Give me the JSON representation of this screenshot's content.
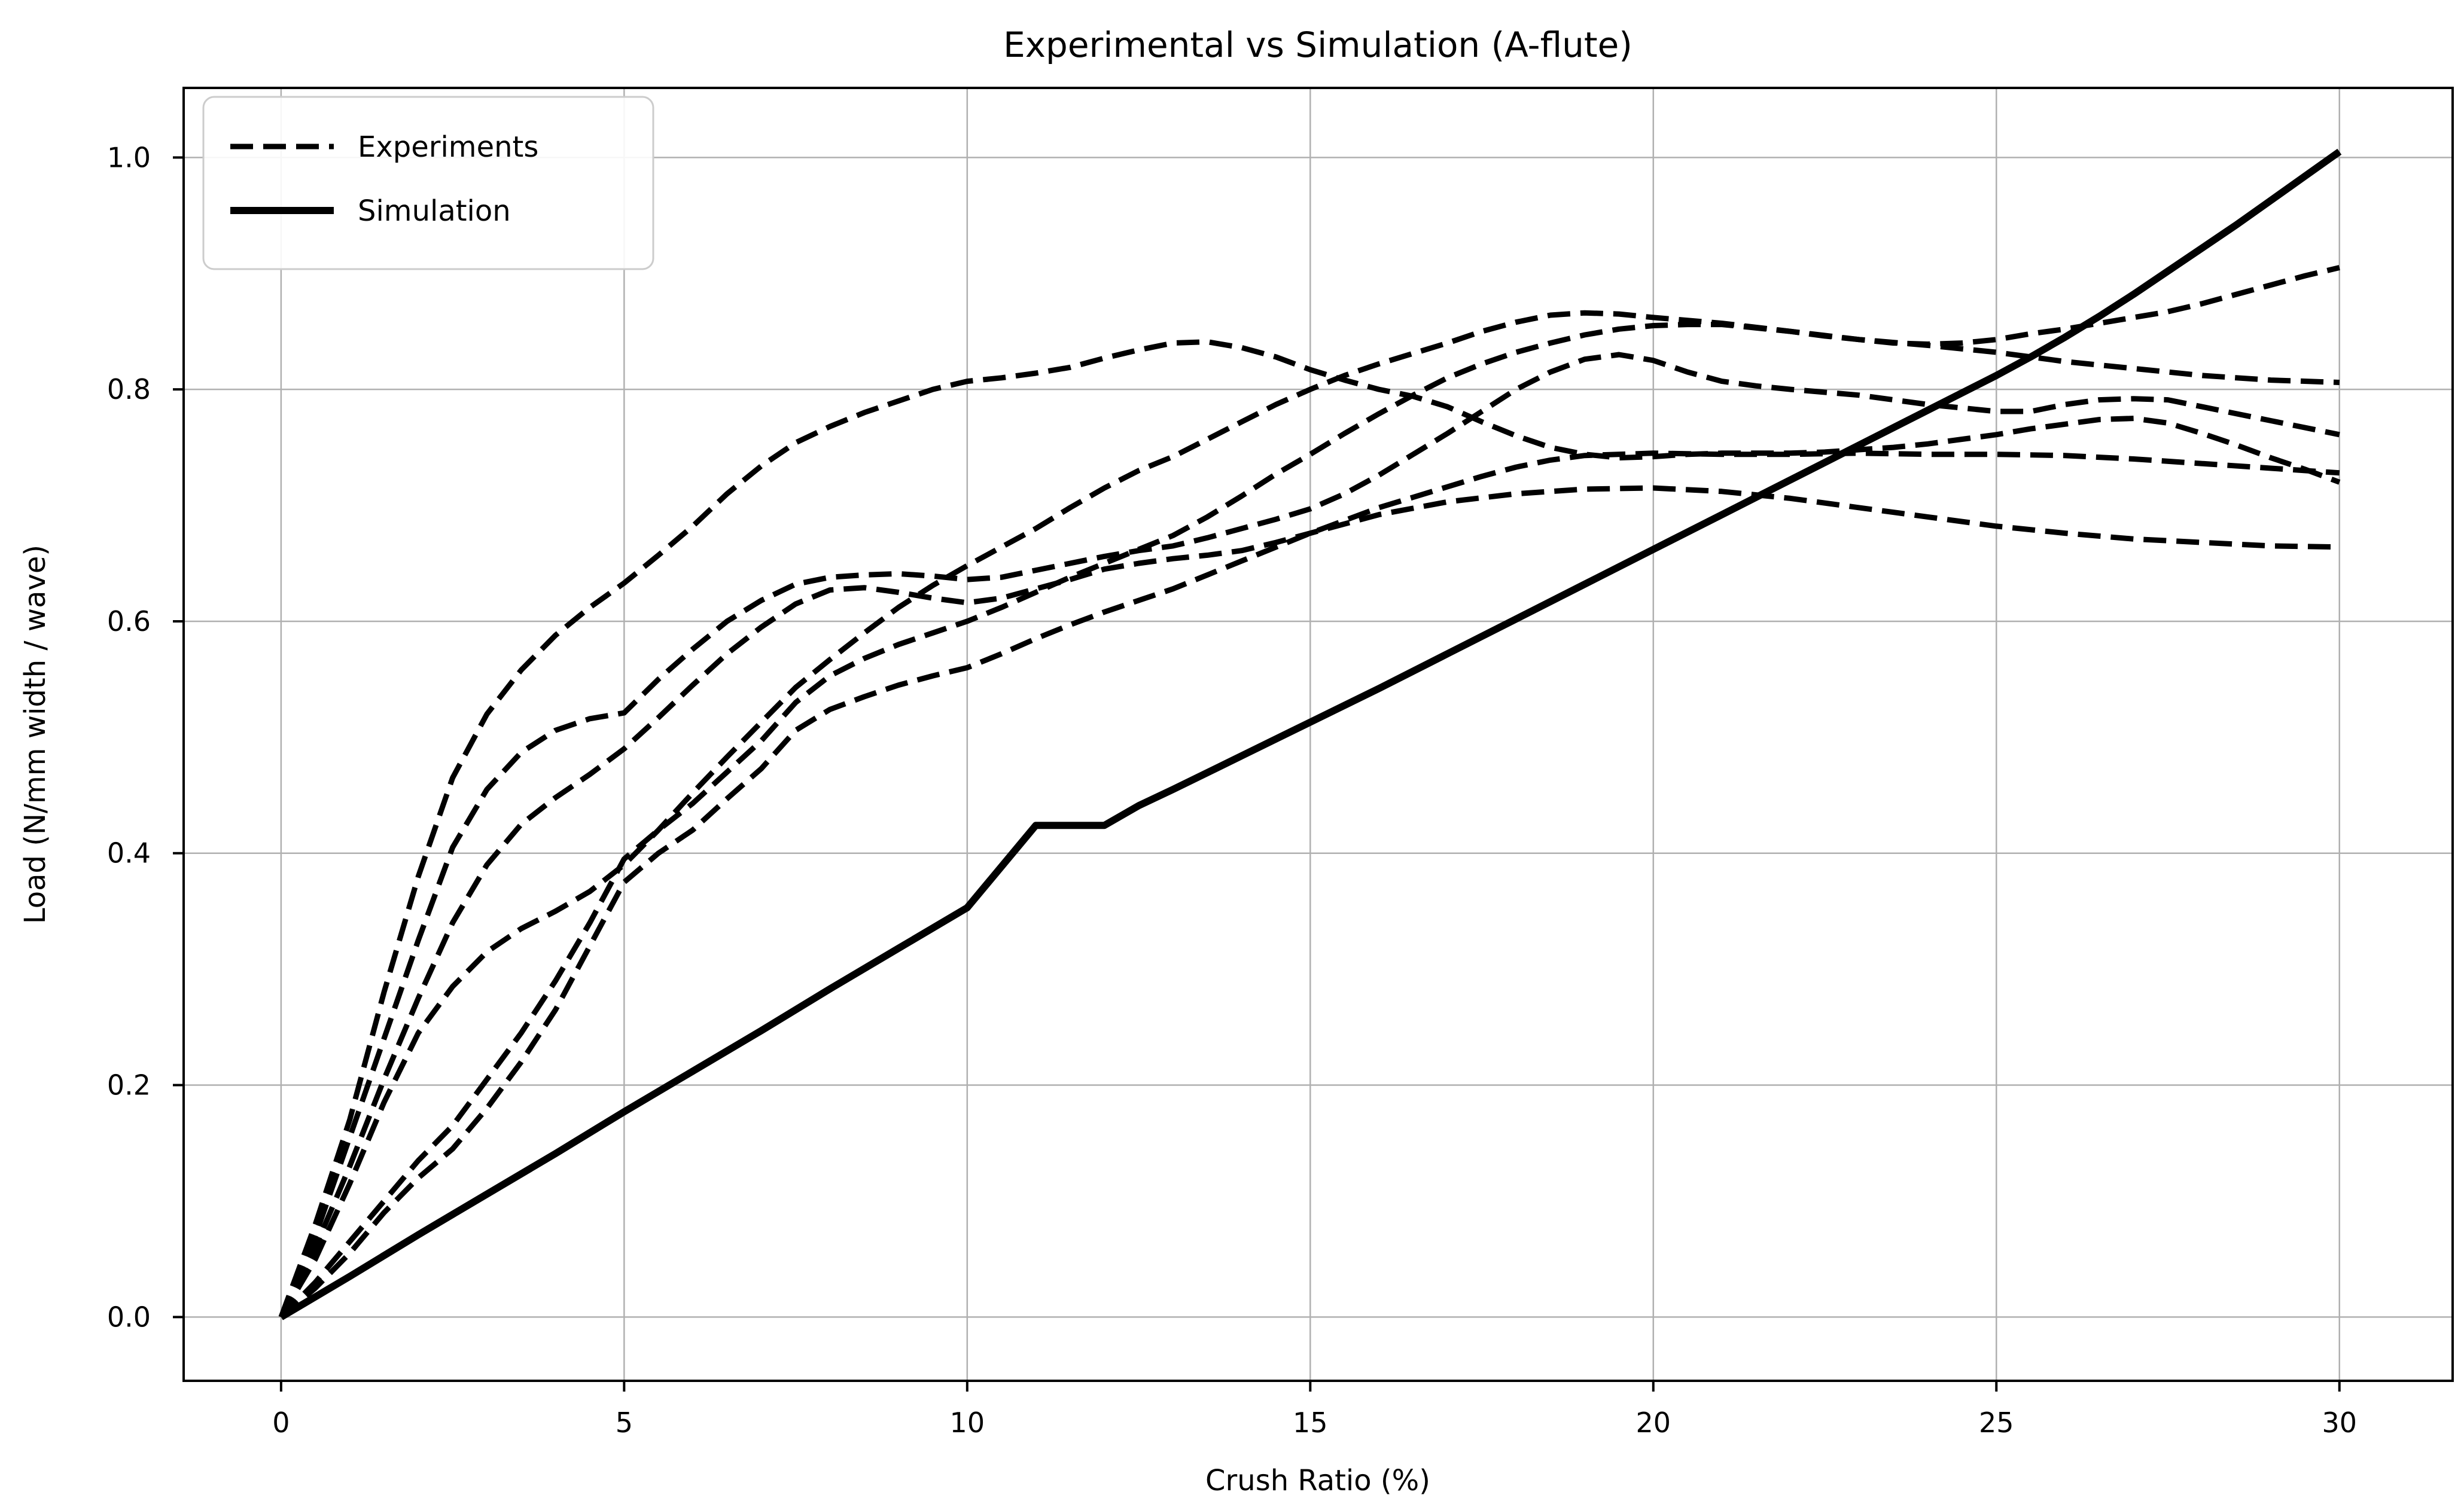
{
  "title": "Experimental vs Simulation (A-flute)",
  "colors": {
    "line": "#000000",
    "grid": "#b0b0b0",
    "spine": "#000000",
    "legend_border": "#cccccc",
    "background": "#ffffff"
  },
  "chart_data": {
    "type": "line",
    "title": "Experimental vs Simulation (A-flute)",
    "xlabel": "Crush Ratio (%)",
    "ylabel": "Load (N/mm width / wave)",
    "xlim": [
      -1.42,
      31.65
    ],
    "ylim": [
      -0.055,
      1.06
    ],
    "x_ticks": [
      0,
      5,
      10,
      15,
      20,
      25,
      30
    ],
    "x_tick_labels": [
      "0",
      "5",
      "10",
      "15",
      "20",
      "25",
      "30"
    ],
    "y_ticks": [
      0.0,
      0.2,
      0.4,
      0.6,
      0.8,
      1.0
    ],
    "y_tick_labels": [
      "0.0",
      "0.2",
      "0.4",
      "0.6",
      "0.8",
      "1.0"
    ],
    "grid": true,
    "legend": {
      "position": "upper left",
      "entries": [
        {
          "label": "Experiments",
          "style": "dashed"
        },
        {
          "label": "Simulation",
          "style": "solid"
        }
      ]
    },
    "series": [
      {
        "name": "experiment-1",
        "group": "Experiments",
        "style": "dashed",
        "x": [
          0,
          0.5,
          1,
          1.5,
          2,
          2.5,
          3,
          3.5,
          4,
          4.5,
          5,
          5.5,
          6,
          6.5,
          7,
          7.5,
          8,
          8.5,
          9,
          9.5,
          10,
          10.5,
          11,
          11.5,
          12,
          12.5,
          13,
          13.5,
          14,
          14.5,
          15,
          15.5,
          16,
          16.5,
          17,
          17.5,
          18,
          18.5,
          19,
          19.5,
          20,
          20.5,
          21,
          21.5,
          22,
          22.5,
          23,
          23.5,
          24,
          24.5,
          25,
          25.5,
          26,
          26.5,
          27,
          27.5,
          28,
          28.5,
          29,
          29.5,
          30
        ],
        "y": [
          0,
          0.08,
          0.17,
          0.28,
          0.38,
          0.465,
          0.52,
          0.558,
          0.588,
          0.612,
          0.633,
          0.657,
          0.682,
          0.71,
          0.734,
          0.754,
          0.768,
          0.78,
          0.79,
          0.8,
          0.807,
          0.81,
          0.814,
          0.819,
          0.827,
          0.834,
          0.84,
          0.841,
          0.836,
          0.828,
          0.817,
          0.808,
          0.8,
          0.794,
          0.785,
          0.772,
          0.76,
          0.75,
          0.744,
          0.741,
          0.742,
          0.744,
          0.745,
          0.745,
          0.745,
          0.746,
          0.748,
          0.75,
          0.753,
          0.757,
          0.761,
          0.766,
          0.77,
          0.774,
          0.775,
          0.771,
          0.762,
          0.752,
          0.741,
          0.731,
          0.72
        ]
      },
      {
        "name": "experiment-2",
        "group": "Experiments",
        "style": "dashed",
        "x": [
          0,
          0.5,
          1,
          1.5,
          2,
          2.5,
          3,
          3.5,
          4,
          4.5,
          5,
          5.5,
          6,
          6.5,
          7,
          7.5,
          8,
          8.5,
          9,
          9.5,
          10,
          10.5,
          11,
          11.5,
          12,
          12.5,
          13,
          13.5,
          14,
          14.5,
          15,
          15.5,
          16,
          16.5,
          17,
          17.5,
          18,
          18.5,
          19,
          19.5,
          20,
          21,
          22,
          23,
          24,
          25,
          26,
          27,
          28,
          29,
          30
        ],
        "y": [
          0,
          0.05,
          0.115,
          0.185,
          0.245,
          0.285,
          0.315,
          0.335,
          0.35,
          0.367,
          0.39,
          0.42,
          0.452,
          0.483,
          0.513,
          0.543,
          0.567,
          0.59,
          0.612,
          0.631,
          0.648,
          0.664,
          0.68,
          0.698,
          0.715,
          0.73,
          0.742,
          0.757,
          0.772,
          0.787,
          0.8,
          0.812,
          0.822,
          0.831,
          0.84,
          0.85,
          0.858,
          0.864,
          0.866,
          0.865,
          0.862,
          0.857,
          0.85,
          0.843,
          0.838,
          0.832,
          0.824,
          0.818,
          0.812,
          0.808,
          0.806
        ]
      },
      {
        "name": "experiment-3",
        "group": "Experiments",
        "style": "dashed",
        "x": [
          0,
          0.5,
          1,
          1.5,
          2,
          2.5,
          3,
          3.5,
          4,
          4.5,
          5,
          5.5,
          6,
          6.5,
          7,
          7.5,
          8,
          8.5,
          9,
          9.5,
          10,
          10.5,
          11,
          11.5,
          12,
          12.5,
          13,
          13.5,
          14,
          14.5,
          15,
          15.5,
          16,
          16.5,
          17,
          17.5,
          18,
          18.5,
          19,
          19.5,
          20,
          20.5,
          21,
          21.5,
          22,
          23,
          24,
          25,
          25.5,
          26,
          26.5,
          27,
          27.5,
          28,
          29,
          30
        ],
        "y": [
          0,
          0.07,
          0.155,
          0.24,
          0.325,
          0.405,
          0.455,
          0.487,
          0.506,
          0.516,
          0.521,
          0.55,
          0.576,
          0.6,
          0.618,
          0.632,
          0.638,
          0.64,
          0.641,
          0.639,
          0.636,
          0.638,
          0.644,
          0.65,
          0.656,
          0.661,
          0.665,
          0.672,
          0.68,
          0.688,
          0.697,
          0.71,
          0.726,
          0.744,
          0.762,
          0.781,
          0.8,
          0.815,
          0.826,
          0.83,
          0.825,
          0.815,
          0.807,
          0.803,
          0.8,
          0.795,
          0.787,
          0.781,
          0.781,
          0.787,
          0.791,
          0.792,
          0.791,
          0.785,
          0.773,
          0.761
        ]
      },
      {
        "name": "experiment-4",
        "group": "Experiments",
        "style": "dashed",
        "x": [
          0,
          0.5,
          1,
          1.5,
          2,
          2.5,
          3,
          3.5,
          4,
          4.5,
          5,
          5.5,
          6,
          6.5,
          7,
          7.5,
          8,
          8.5,
          9,
          9.5,
          10,
          10.5,
          11,
          11.5,
          12,
          12.5,
          13,
          13.5,
          14,
          14.5,
          15,
          16,
          17,
          18,
          19,
          20,
          21,
          22,
          23,
          24,
          25,
          26,
          27,
          28,
          29,
          30
        ],
        "y": [
          0,
          0.06,
          0.13,
          0.205,
          0.275,
          0.34,
          0.39,
          0.425,
          0.448,
          0.468,
          0.49,
          0.517,
          0.545,
          0.572,
          0.595,
          0.615,
          0.627,
          0.629,
          0.625,
          0.62,
          0.616,
          0.62,
          0.628,
          0.636,
          0.645,
          0.65,
          0.654,
          0.657,
          0.661,
          0.668,
          0.676,
          0.692,
          0.703,
          0.71,
          0.714,
          0.715,
          0.712,
          0.706,
          0.698,
          0.69,
          0.682,
          0.676,
          0.671,
          0.668,
          0.665,
          0.664
        ]
      },
      {
        "name": "experiment-5",
        "group": "Experiments",
        "style": "dashed",
        "x": [
          0,
          0.5,
          1,
          1.5,
          2,
          2.5,
          3,
          3.5,
          4,
          4.5,
          5,
          5.5,
          6,
          6.5,
          7,
          7.5,
          8,
          8.5,
          9,
          9.5,
          10,
          10.5,
          11,
          11.5,
          12,
          12.5,
          13,
          13.5,
          14,
          14.5,
          15,
          15.5,
          16,
          16.5,
          17,
          17.5,
          18,
          18.5,
          19,
          19.5,
          20,
          20.5,
          21,
          21.5,
          22,
          22.5,
          23,
          23.5,
          24,
          24.5,
          25,
          25.5,
          26,
          26.5,
          27,
          27.5,
          28,
          28.5,
          29,
          29.5,
          30
        ],
        "y": [
          0,
          0.03,
          0.065,
          0.1,
          0.135,
          0.165,
          0.205,
          0.245,
          0.29,
          0.34,
          0.395,
          0.42,
          0.443,
          0.47,
          0.497,
          0.53,
          0.553,
          0.568,
          0.58,
          0.59,
          0.6,
          0.612,
          0.625,
          0.638,
          0.65,
          0.662,
          0.674,
          0.69,
          0.708,
          0.727,
          0.744,
          0.762,
          0.779,
          0.795,
          0.81,
          0.822,
          0.832,
          0.84,
          0.847,
          0.852,
          0.855,
          0.856,
          0.856,
          0.853,
          0.85,
          0.846,
          0.843,
          0.84,
          0.839,
          0.84,
          0.843,
          0.848,
          0.852,
          0.857,
          0.862,
          0.867,
          0.874,
          0.882,
          0.89,
          0.898,
          0.905
        ]
      },
      {
        "name": "experiment-6",
        "group": "Experiments",
        "style": "dashed",
        "x": [
          0,
          0.5,
          1,
          1.5,
          2,
          2.5,
          3,
          3.5,
          4,
          4.5,
          5,
          5.5,
          6,
          6.5,
          7,
          7.5,
          8,
          8.5,
          9,
          9.5,
          10,
          10.5,
          11,
          11.5,
          12,
          12.5,
          13,
          13.5,
          14,
          14.5,
          15,
          15.5,
          16,
          16.5,
          17,
          17.5,
          18,
          18.5,
          19,
          20,
          21,
          22,
          23,
          24,
          25,
          26,
          27,
          28,
          29,
          30
        ],
        "y": [
          0,
          0.025,
          0.055,
          0.09,
          0.12,
          0.145,
          0.18,
          0.22,
          0.265,
          0.32,
          0.375,
          0.4,
          0.42,
          0.447,
          0.473,
          0.506,
          0.524,
          0.535,
          0.545,
          0.553,
          0.56,
          0.572,
          0.585,
          0.597,
          0.608,
          0.618,
          0.628,
          0.64,
          0.652,
          0.664,
          0.676,
          0.687,
          0.698,
          0.707,
          0.716,
          0.725,
          0.733,
          0.739,
          0.743,
          0.745,
          0.744,
          0.744,
          0.745,
          0.744,
          0.744,
          0.743,
          0.74,
          0.736,
          0.732,
          0.728
        ]
      },
      {
        "name": "simulation",
        "group": "Simulation",
        "style": "solid",
        "x": [
          0,
          1,
          2,
          3,
          4,
          5,
          6,
          7,
          8,
          9,
          10,
          11,
          12,
          12.5,
          13,
          14,
          15,
          16,
          17,
          18,
          19,
          20,
          21,
          22,
          23,
          24,
          25,
          25.5,
          26,
          26.5,
          27,
          27.5,
          28,
          28.5,
          29,
          29.5,
          30
        ],
        "y": [
          0,
          0.035,
          0.071,
          0.106,
          0.141,
          0.177,
          0.212,
          0.247,
          0.283,
          0.318,
          0.353,
          0.424,
          0.424,
          0.441,
          0.455,
          0.484,
          0.513,
          0.542,
          0.572,
          0.602,
          0.632,
          0.662,
          0.692,
          0.722,
          0.752,
          0.782,
          0.812,
          0.828,
          0.845,
          0.863,
          0.882,
          0.902,
          0.922,
          0.942,
          0.963,
          0.984,
          1.005
        ]
      }
    ]
  }
}
